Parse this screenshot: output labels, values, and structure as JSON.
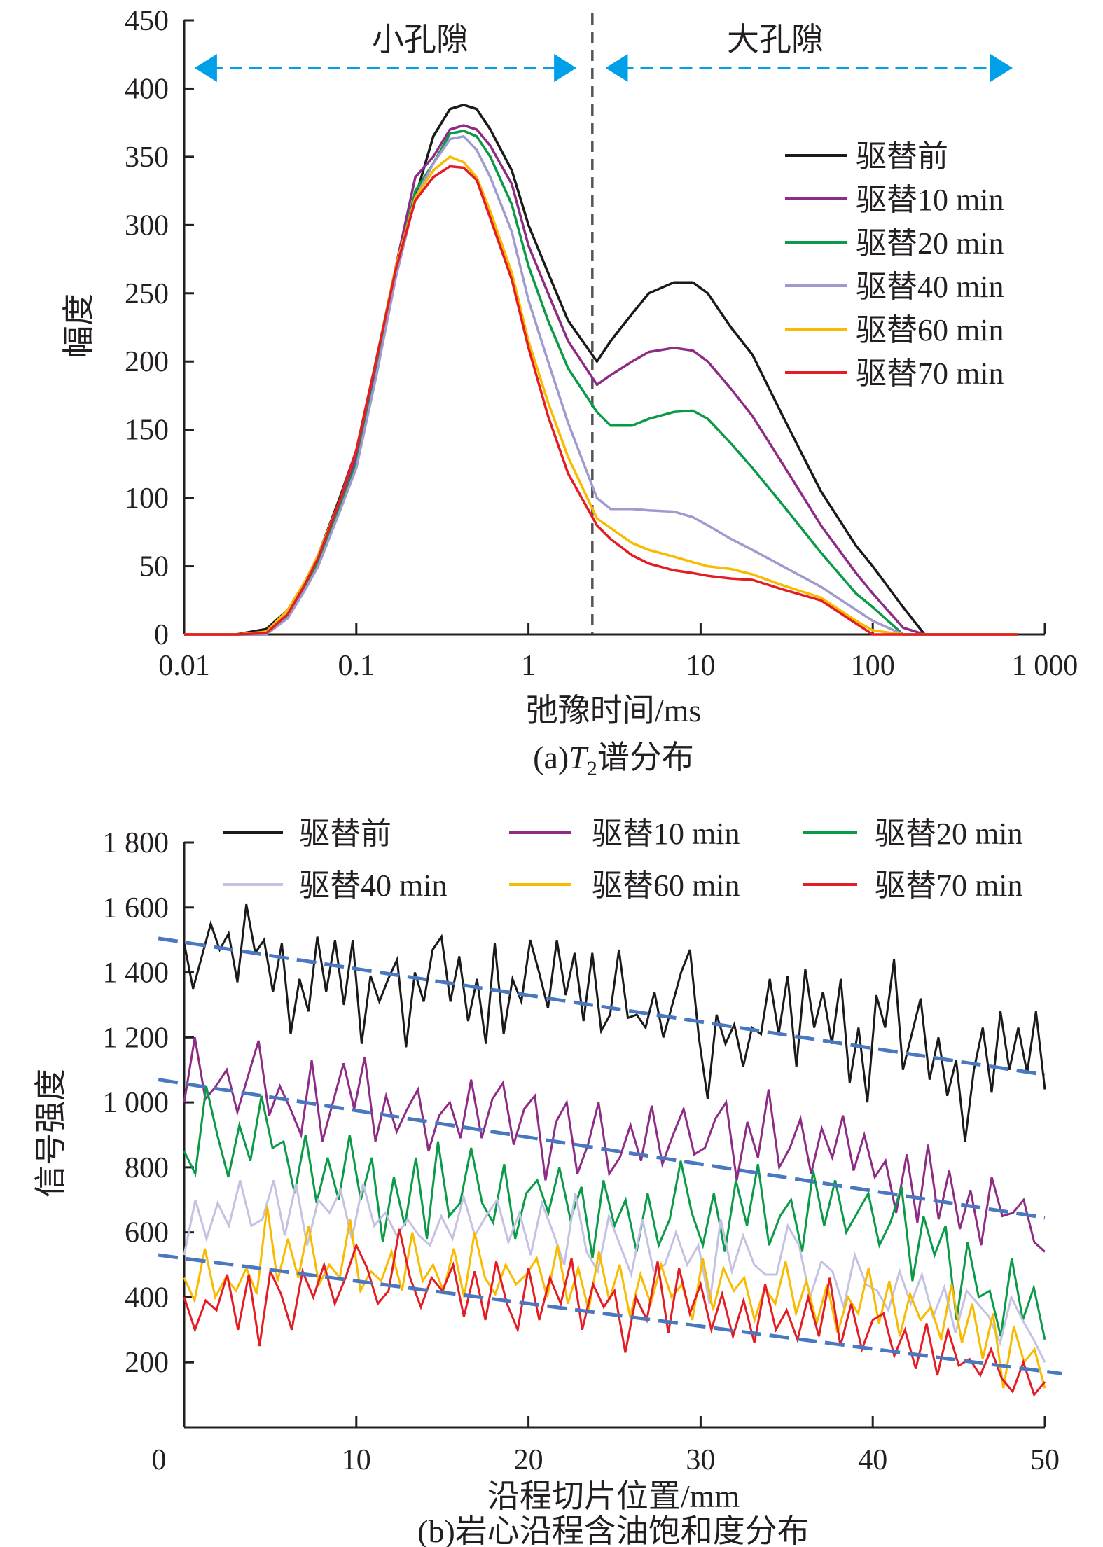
{
  "chart_data": [
    {
      "type": "line",
      "caption": "(a) T2谱分布",
      "caption_prefix": "(a)",
      "caption_T": "T",
      "caption_sub": "2",
      "caption_suffix": "谱分布",
      "xlabel": "弛豫时间/ms",
      "ylabel": "幅度",
      "xscale": "log",
      "xlim": [
        0.01,
        1000
      ],
      "ylim": [
        0,
        450
      ],
      "xticks": [
        0.01,
        0.1,
        1,
        10,
        100,
        1000
      ],
      "xtick_labels": [
        "0.01",
        "0.1",
        "1",
        "10",
        "100",
        "1 000"
      ],
      "yticks": [
        0,
        50,
        100,
        150,
        200,
        250,
        300,
        350,
        400,
        450
      ],
      "ytick_labels": [
        "0",
        "50",
        "100",
        "150",
        "200",
        "250",
        "300",
        "350",
        "400",
        "450"
      ],
      "divider_x": 2.35,
      "regions": [
        {
          "label": "小孔隙",
          "from": 0.0115,
          "to": 1.9
        },
        {
          "label": "大孔隙",
          "from": 2.8,
          "to": 650
        }
      ],
      "legend_position": "right",
      "x": [
        0.01,
        0.02,
        0.03,
        0.04,
        0.05,
        0.06,
        0.08,
        0.1,
        0.13,
        0.17,
        0.22,
        0.28,
        0.35,
        0.42,
        0.5,
        0.6,
        0.8,
        1,
        1.3,
        1.7,
        2.5,
        3,
        4,
        5,
        7,
        9,
        11,
        15,
        20,
        30,
        50,
        80,
        100,
        150,
        200,
        300,
        500,
        700
      ],
      "series": [
        {
          "name": "驱替前",
          "color": "#1a1a1a",
          "values": [
            0,
            0,
            4,
            18,
            38,
            58,
            100,
            135,
            200,
            270,
            320,
            365,
            385,
            388,
            385,
            370,
            340,
            300,
            265,
            230,
            200,
            215,
            235,
            250,
            258,
            258,
            250,
            225,
            205,
            160,
            105,
            65,
            50,
            20,
            0,
            0,
            0,
            0
          ]
        },
        {
          "name": "驱替10 min",
          "color": "#8e2c85",
          "values": [
            0,
            0,
            0,
            15,
            35,
            55,
            95,
            130,
            195,
            270,
            335,
            350,
            370,
            373,
            370,
            358,
            330,
            285,
            250,
            215,
            183,
            190,
            200,
            207,
            210,
            208,
            200,
            180,
            160,
            125,
            80,
            45,
            30,
            5,
            0,
            0,
            0,
            0
          ]
        },
        {
          "name": "驱替20 min",
          "color": "#0a9a48",
          "values": [
            0,
            0,
            0,
            14,
            33,
            52,
            92,
            125,
            190,
            265,
            325,
            345,
            367,
            369,
            365,
            350,
            315,
            270,
            230,
            195,
            163,
            153,
            153,
            158,
            163,
            164,
            158,
            140,
            122,
            95,
            60,
            30,
            20,
            0,
            0,
            0,
            0,
            0
          ]
        },
        {
          "name": "驱替40 min",
          "color": "#9f9ad0",
          "values": [
            0,
            0,
            0,
            12,
            32,
            50,
            90,
            122,
            188,
            262,
            320,
            345,
            363,
            365,
            355,
            335,
            295,
            245,
            200,
            155,
            100,
            92,
            92,
            91,
            90,
            86,
            80,
            70,
            62,
            50,
            35,
            18,
            10,
            0,
            0,
            0,
            0,
            0
          ]
        },
        {
          "name": "驱替60 min",
          "color": "#f8bb00",
          "values": [
            0,
            0,
            2,
            18,
            38,
            58,
            98,
            135,
            200,
            270,
            320,
            340,
            350,
            346,
            335,
            310,
            265,
            215,
            170,
            130,
            85,
            78,
            67,
            62,
            57,
            53,
            50,
            48,
            44,
            36,
            27,
            10,
            3,
            0,
            0,
            0,
            0,
            0
          ]
        },
        {
          "name": "驱替70 min",
          "color": "#e41d25",
          "values": [
            0,
            0,
            1,
            15,
            36,
            56,
            98,
            135,
            200,
            268,
            318,
            335,
            343,
            342,
            333,
            305,
            260,
            210,
            160,
            118,
            80,
            70,
            58,
            52,
            47,
            45,
            43,
            41,
            40,
            33,
            25,
            8,
            0,
            0,
            0,
            0,
            0,
            0
          ]
        }
      ]
    },
    {
      "type": "line",
      "caption": "(b)岩心沿程含油饱和度分布",
      "xlabel": "沿程切片位置/mm",
      "ylabel": "信号强度",
      "xlim": [
        0,
        50
      ],
      "ylim": [
        0,
        1800
      ],
      "xticks": [
        0,
        10,
        20,
        30,
        40,
        50
      ],
      "xtick_labels": [
        "0",
        "10",
        "20",
        "30",
        "40",
        "50"
      ],
      "yticks": [
        200,
        400,
        600,
        800,
        1000,
        1200,
        1400,
        1600,
        1800
      ],
      "ytick_labels": [
        "200",
        "400",
        "600",
        "800",
        "1 000",
        "1 200",
        "1 400",
        "1 600",
        "1 800"
      ],
      "legend_position": "top",
      "trend_color": "#4a78c0",
      "trend_lines": [
        {
          "from": [
            -1.5,
            1505
          ],
          "to": [
            50,
            1085
          ]
        },
        {
          "from": [
            -1.5,
            1070
          ],
          "to": [
            50,
            645
          ]
        },
        {
          "from": [
            -1.5,
            530
          ],
          "to": [
            51,
            165
          ]
        }
      ],
      "series": [
        {
          "name": "驱替前",
          "color": "#1a1a1a",
          "values": [
            1490,
            1350,
            1450,
            1550,
            1470,
            1520,
            1370,
            1610,
            1460,
            1500,
            1340,
            1490,
            1210,
            1380,
            1280,
            1510,
            1340,
            1500,
            1300,
            1500,
            1180,
            1390,
            1310,
            1380,
            1440,
            1170,
            1400,
            1310,
            1470,
            1510,
            1310,
            1450,
            1250,
            1380,
            1180,
            1490,
            1210,
            1380,
            1310,
            1500,
            1400,
            1290,
            1500,
            1330,
            1460,
            1250,
            1460,
            1220,
            1270,
            1470,
            1260,
            1270,
            1230,
            1340,
            1200,
            1300,
            1400,
            1470,
            1200,
            1010,
            1270,
            1180,
            1240,
            1110,
            1230,
            1210,
            1380,
            1210,
            1390,
            1110,
            1410,
            1230,
            1340,
            1180,
            1380,
            1060,
            1230,
            1000,
            1330,
            1230,
            1440,
            1100,
            1210,
            1320,
            1070,
            1200,
            1020,
            1130,
            880,
            1100,
            1230,
            1030,
            1280,
            1100,
            1230,
            1090,
            1280,
            1040
          ]
        },
        {
          "name": "驱替10 min",
          "color": "#8e2c85",
          "values": [
            1000,
            1200,
            1010,
            1050,
            1100,
            970,
            1080,
            1190,
            960,
            1050,
            980,
            900,
            1130,
            880,
            1000,
            1120,
            980,
            1140,
            880,
            1020,
            910,
            980,
            1040,
            850,
            960,
            1000,
            890,
            1070,
            890,
            1010,
            1060,
            870,
            980,
            1020,
            760,
            940,
            1000,
            780,
            870,
            1000,
            780,
            830,
            930,
            820,
            990,
            810,
            900,
            980,
            840,
            860,
            950,
            1000,
            760,
            940,
            830,
            1040,
            800,
            860,
            950,
            780,
            920,
            830,
            960,
            790,
            900,
            770,
            820,
            660,
            840,
            630,
            870,
            640,
            790,
            610,
            730,
            560,
            770,
            650,
            660,
            700,
            570,
            540
          ]
        },
        {
          "name": "驱替20 min",
          "color": "#0a9a48",
          "values": [
            850,
            780,
            1050,
            900,
            770,
            930,
            820,
            1020,
            860,
            880,
            720,
            900,
            690,
            830,
            700,
            900,
            700,
            830,
            570,
            770,
            620,
            830,
            580,
            880,
            650,
            690,
            860,
            690,
            630,
            810,
            580,
            720,
            760,
            660,
            800,
            640,
            740,
            520,
            760,
            620,
            700,
            540,
            720,
            560,
            640,
            820,
            660,
            560,
            720,
            540,
            760,
            620,
            810,
            560,
            650,
            700,
            540,
            790,
            620,
            760,
            600,
            660,
            720,
            560,
            630,
            740,
            450,
            650,
            530,
            620,
            330,
            570,
            400,
            420,
            280,
            520,
            330,
            430,
            270
          ]
        },
        {
          "name": "驱替40 min",
          "color": "#c4c2e2",
          "values": [
            530,
            700,
            580,
            690,
            620,
            760,
            620,
            640,
            760,
            590,
            750,
            560,
            700,
            660,
            730,
            580,
            750,
            620,
            660,
            590,
            640,
            590,
            560,
            650,
            580,
            710,
            590,
            650,
            700,
            570,
            660,
            530,
            690,
            600,
            500,
            720,
            540,
            480,
            650,
            560,
            470,
            640,
            480,
            500,
            600,
            500,
            560,
            380,
            640,
            480,
            590,
            500,
            470,
            470,
            620,
            560,
            400,
            510,
            480,
            370,
            530,
            440,
            420,
            360,
            480,
            380,
            470,
            340,
            430,
            290,
            420,
            380,
            340,
            260,
            400,
            330,
            270,
            200
          ]
        },
        {
          "name": "驱替60 min",
          "color": "#f8bb00",
          "values": [
            460,
            390,
            550,
            400,
            460,
            420,
            490,
            410,
            680,
            450,
            580,
            460,
            620,
            440,
            500,
            460,
            640,
            420,
            480,
            450,
            540,
            420,
            600,
            450,
            500,
            420,
            550,
            400,
            600,
            460,
            410,
            500,
            440,
            470,
            520,
            400,
            560,
            380,
            490,
            360,
            540,
            390,
            500,
            340,
            470,
            380,
            500,
            400,
            440,
            330,
            520,
            360,
            490,
            420,
            460,
            330,
            430,
            380,
            510,
            350,
            450,
            320,
            440,
            290,
            400,
            350,
            490,
            320,
            450,
            280,
            410,
            330,
            370,
            270,
            440,
            260,
            380,
            210,
            350,
            120,
            310,
            200,
            240,
            120
          ]
        },
        {
          "name": "驱替70 min",
          "color": "#e41d25",
          "values": [
            400,
            300,
            390,
            360,
            470,
            300,
            470,
            250,
            480,
            410,
            300,
            480,
            400,
            500,
            380,
            460,
            560,
            490,
            380,
            420,
            610,
            460,
            370,
            460,
            420,
            500,
            340,
            480,
            330,
            510,
            380,
            300,
            490,
            330,
            460,
            380,
            520,
            300,
            440,
            370,
            420,
            230,
            400,
            330,
            510,
            290,
            490,
            350,
            440,
            300,
            410,
            280,
            390,
            260,
            440,
            300,
            360,
            270,
            400,
            280,
            460,
            250,
            380,
            240,
            330,
            350,
            220,
            300,
            180,
            320,
            160,
            300,
            190,
            210,
            160,
            240,
            150,
            110,
            200,
            100,
            140
          ]
        }
      ]
    }
  ]
}
